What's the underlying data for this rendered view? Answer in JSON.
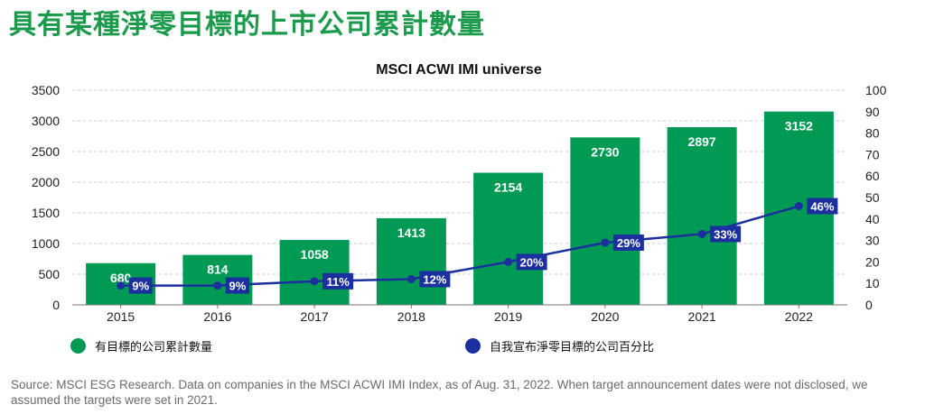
{
  "page_title": "具有某種淨零目標的上市公司累計數量",
  "source_note": "Source: MSCI ESG Research. Data on companies in the MSCI ACWI IMI Index, as of Aug. 31, 2022. When target announcement dates were not disclosed, we assumed the targets were set in 2021.",
  "colors": {
    "bar": "#009a55",
    "line": "#1b2f9e",
    "title": "#1a9a4a",
    "grid": "#c8c8c8"
  },
  "chart_data": {
    "type": "bar",
    "title": "MSCI ACWI IMI universe",
    "categories": [
      "2015",
      "2016",
      "2017",
      "2018",
      "2019",
      "2020",
      "2021",
      "2022"
    ],
    "series": [
      {
        "name": "有目標的公司累計數量",
        "type": "bar",
        "axis": "left",
        "values": [
          680,
          814,
          1058,
          1413,
          2154,
          2730,
          2897,
          3152
        ],
        "labels": [
          "680",
          "814",
          "1058",
          "1413",
          "2154",
          "2730",
          "2897",
          "3152"
        ]
      },
      {
        "name": "自我宣布淨零目標的公司百分比",
        "type": "line",
        "axis": "right",
        "values": [
          9,
          9,
          11,
          12,
          20,
          29,
          33,
          46
        ],
        "labels": [
          "9%",
          "9%",
          "11%",
          "12%",
          "20%",
          "29%",
          "33%",
          "46%"
        ]
      }
    ],
    "y_left": {
      "min": 0,
      "max": 3500,
      "ticks": [
        "0",
        "500",
        "1000",
        "1500",
        "2000",
        "2500",
        "3000",
        "3500"
      ]
    },
    "y_right": {
      "min": 0,
      "max": 100,
      "ticks": [
        "0",
        "10",
        "20",
        "30",
        "40",
        "50",
        "60",
        "70",
        "80",
        "90",
        "100"
      ]
    },
    "grid": true,
    "legend_position": "bottom"
  }
}
